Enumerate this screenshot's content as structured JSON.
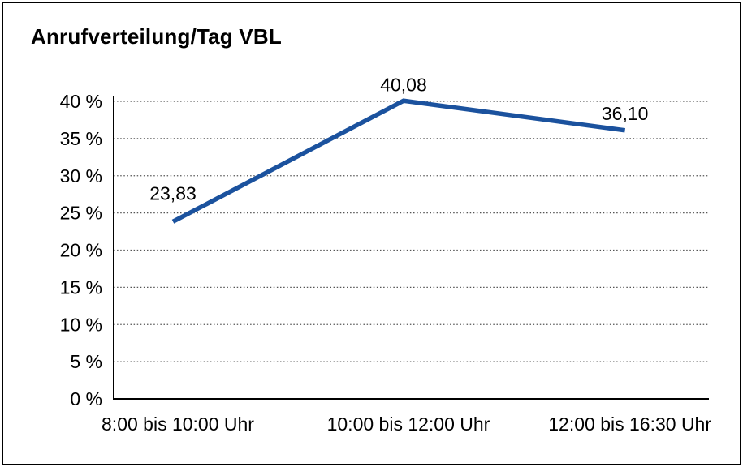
{
  "window": {
    "background": "#ffffff",
    "frame_color": "#000000"
  },
  "chart_data": {
    "type": "line",
    "title": "Anrufverteilung/Tag VBL",
    "categories": [
      "8:00 bis 10:00 Uhr",
      "10:00 bis 12:00 Uhr",
      "12:00 bis 16:30 Uhr"
    ],
    "series": [
      {
        "values": [
          23.83,
          40.08,
          36.1
        ],
        "point_labels": [
          "23,83",
          "40,08",
          "36,10"
        ],
        "color": "#1b529e"
      }
    ],
    "xlabel": "",
    "ylabel": "",
    "ylim": [
      0,
      40
    ],
    "ytick_step": 5,
    "ytick_labels": [
      "0 %",
      "5 %",
      "10 %",
      "15 %",
      "20 %",
      "25 %",
      "30 %",
      "35 %",
      "40 %"
    ],
    "grid": "horizontal-dotted",
    "grid_color": "#555555",
    "axis_color": "#000000",
    "legend": "none"
  }
}
